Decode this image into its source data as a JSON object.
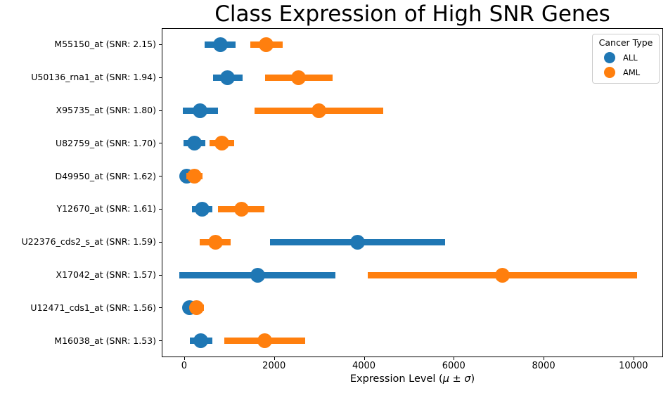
{
  "figure": {
    "background": "#ffffff"
  },
  "chart_data": {
    "type": "scatter",
    "subtype": "point-plot-with-horizontal-error-bars",
    "title": "Class Expression of High SNR Genes",
    "xlabel": "Expression Level (μ ± σ)",
    "ylabel": "",
    "grid": false,
    "legend_title": "Cancer Type",
    "legend_position": "upper right",
    "xlim": [
      -500,
      10660
    ],
    "xticks": [
      0,
      2000,
      4000,
      6000,
      8000,
      10000
    ],
    "categories": [
      "M55150_at (SNR: 2.15)",
      "U50136_rna1_at (SNR: 1.94)",
      "X95735_at (SNR: 1.80)",
      "U82759_at (SNR: 1.70)",
      "D49950_at (SNR: 1.62)",
      "Y12670_at (SNR: 1.61)",
      "U22376_cds2_s_at (SNR: 1.59)",
      "X17042_at (SNR: 1.57)",
      "U12471_cds1_at (SNR: 1.56)",
      "M16038_at (SNR: 1.53)"
    ],
    "series": [
      {
        "name": "ALL",
        "color": "#1f77b4",
        "means": [
          800,
          970,
          360,
          230,
          50,
          400,
          3860,
          1630,
          125,
          370
        ],
        "sigmas": [
          350,
          330,
          390,
          240,
          120,
          220,
          1950,
          1740,
          120,
          250
        ]
      },
      {
        "name": "AML",
        "color": "#ff7f0e",
        "means": [
          1830,
          2550,
          3000,
          840,
          230,
          1270,
          690,
          7080,
          280,
          1800
        ],
        "sigmas": [
          360,
          750,
          1430,
          275,
          180,
          520,
          340,
          3000,
          160,
          900
        ]
      }
    ]
  },
  "legend": {
    "title": "Cancer Type",
    "items": [
      {
        "label": "ALL",
        "color": "#1f77b4"
      },
      {
        "label": "AML",
        "color": "#ff7f0e"
      }
    ]
  }
}
